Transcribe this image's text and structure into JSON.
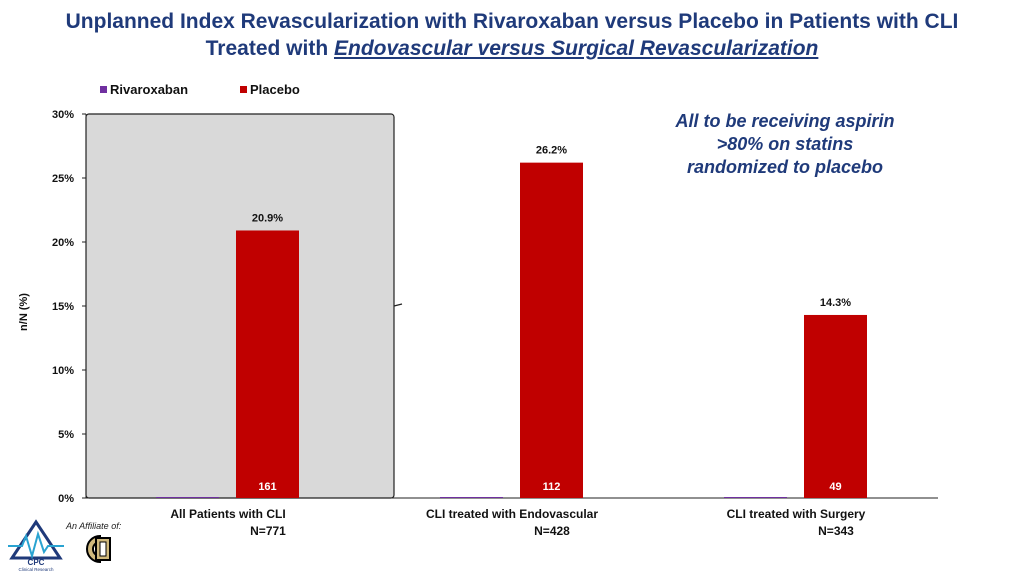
{
  "title": {
    "line1": "Unplanned Index Revascularization with Rivaroxaban versus Placebo in Patients with CLI",
    "line2_prefix": "Treated with ",
    "line2_emphasis": "Endovascular versus Surgical Revascularization"
  },
  "note": {
    "lines": [
      "All to be receiving aspirin",
      ">80% on statins",
      "randomized to placebo"
    ]
  },
  "colors": {
    "rivaroxaban": "#7030a0",
    "placebo": "#c00000",
    "highlight": "#d9d9d9",
    "title": "#1f3a7a"
  },
  "chart_data": {
    "type": "bar",
    "title": "Unplanned Index Revascularization with Rivaroxaban versus Placebo in Patients with CLI Treated with Endovascular versus Surgical Revascularization",
    "ylabel": "n/N (%)",
    "xlabel": "",
    "ylim": [
      0,
      30
    ],
    "yticks": [
      "0%",
      "5%",
      "10%",
      "15%",
      "20%",
      "25%",
      "30%"
    ],
    "ytick_values": [
      0,
      5,
      10,
      15,
      20,
      25,
      30
    ],
    "categories": [
      "All Patients with CLI",
      "CLI treated with Endovascular",
      "CLI treated with Surgery"
    ],
    "category_n": [
      "N=771",
      "N=428",
      "N=343"
    ],
    "legend_position": "top-left",
    "grid": false,
    "series": [
      {
        "name": "Rivaroxaban",
        "values": [
          0,
          0,
          0
        ],
        "data_labels": [
          "",
          "",
          ""
        ],
        "counts": [
          "",
          "",
          ""
        ]
      },
      {
        "name": "Placebo",
        "values": [
          20.9,
          26.2,
          14.3
        ],
        "data_labels": [
          "20.9%",
          "26.2%",
          "14.3%"
        ],
        "counts": [
          "161",
          "112",
          "49"
        ]
      }
    ]
  },
  "footer": {
    "affiliate": "An Affiliate of:",
    "logo_text": "CPC",
    "logo_subtext": "Clinical Research"
  }
}
